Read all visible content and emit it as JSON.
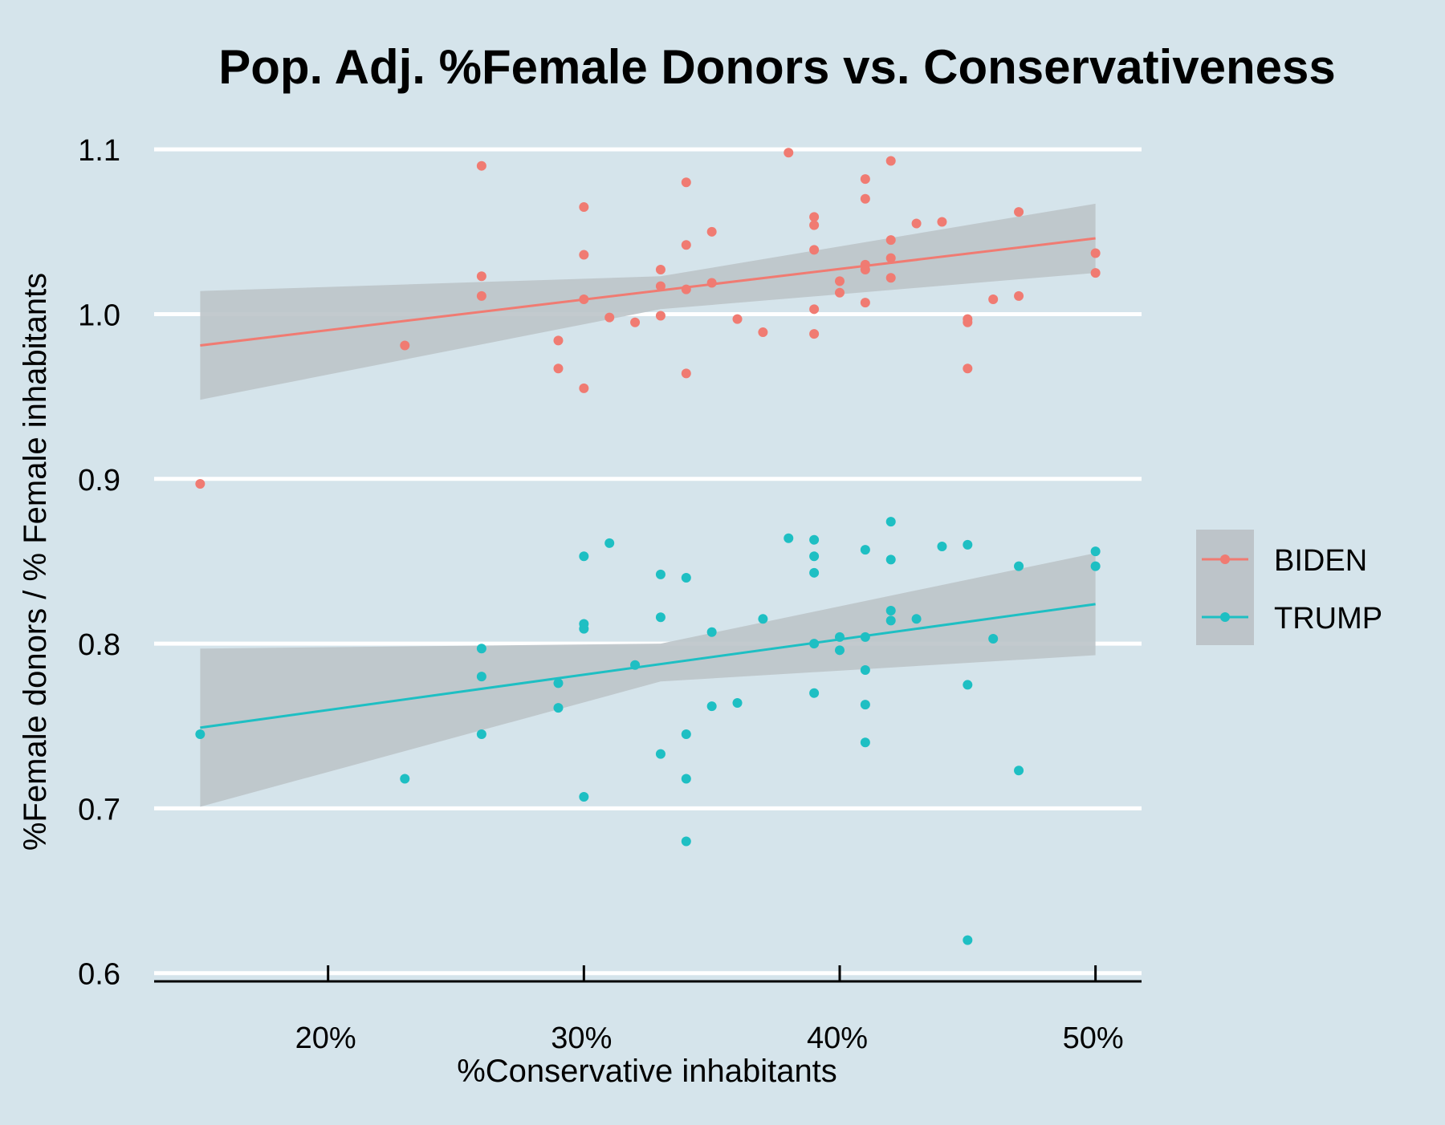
{
  "chart_data": {
    "type": "scatter",
    "title": "Pop. Adj. %Female Donors vs. Conservativeness",
    "xlabel": "%Conservative inhabitants",
    "ylabel": "%Female donors / % Female inhabitants",
    "xlim": [
      13.2,
      51.8
    ],
    "ylim": [
      0.595,
      1.103
    ],
    "x_ticks": [
      20,
      30,
      40,
      50
    ],
    "x_tick_labels": [
      "20%",
      "30%",
      "40%",
      "50%"
    ],
    "y_ticks": [
      0.6,
      0.7,
      0.8,
      0.9,
      1.0,
      1.1
    ],
    "y_tick_labels": [
      "0.6",
      "0.7",
      "0.8",
      "0.9",
      "1.0",
      "1.1"
    ],
    "grid": "horizontal",
    "legend_position": "right",
    "background_color": "#d5e4eb",
    "ribbon_color": "#bdc4c9",
    "series": [
      {
        "name": "BIDEN",
        "color": "#f07b72",
        "points": [
          [
            15,
            0.897
          ],
          [
            23,
            0.981
          ],
          [
            26,
            1.09
          ],
          [
            26,
            1.023
          ],
          [
            26,
            1.011
          ],
          [
            29,
            0.984
          ],
          [
            29,
            0.967
          ],
          [
            30,
            1.065
          ],
          [
            30,
            1.036
          ],
          [
            30,
            1.009
          ],
          [
            30,
            0.955
          ],
          [
            31,
            0.998
          ],
          [
            32,
            0.995
          ],
          [
            33,
            1.027
          ],
          [
            33,
            1.017
          ],
          [
            33,
            0.999
          ],
          [
            34,
            1.08
          ],
          [
            34,
            1.042
          ],
          [
            34,
            1.015
          ],
          [
            34,
            0.964
          ],
          [
            35,
            1.05
          ],
          [
            35,
            1.019
          ],
          [
            36,
            0.997
          ],
          [
            37,
            0.989
          ],
          [
            38,
            1.098
          ],
          [
            39,
            1.059
          ],
          [
            39,
            1.054
          ],
          [
            39,
            1.039
          ],
          [
            39,
            1.003
          ],
          [
            39,
            0.988
          ],
          [
            40,
            1.02
          ],
          [
            40,
            1.013
          ],
          [
            41,
            1.082
          ],
          [
            41,
            1.07
          ],
          [
            41,
            1.03
          ],
          [
            41,
            1.027
          ],
          [
            41,
            1.007
          ],
          [
            42,
            1.093
          ],
          [
            42,
            1.045
          ],
          [
            42,
            1.034
          ],
          [
            42,
            1.022
          ],
          [
            43,
            1.055
          ],
          [
            44,
            1.056
          ],
          [
            45,
            0.997
          ],
          [
            45,
            0.995
          ],
          [
            45,
            0.967
          ],
          [
            46,
            1.009
          ],
          [
            47,
            1.062
          ],
          [
            47,
            1.011
          ],
          [
            50,
            1.037
          ],
          [
            50,
            1.025
          ]
        ],
        "fit": {
          "x": [
            15,
            50
          ],
          "y": [
            0.981,
            1.046
          ]
        },
        "ci": {
          "x": [
            15,
            33,
            50
          ],
          "lower": [
            0.948,
            1.003,
            1.025
          ],
          "upper": [
            1.014,
            1.023,
            1.067
          ]
        }
      },
      {
        "name": "TRUMP",
        "color": "#1ebfc3",
        "points": [
          [
            15,
            0.745
          ],
          [
            23,
            0.718
          ],
          [
            26,
            0.797
          ],
          [
            26,
            0.78
          ],
          [
            26,
            0.745
          ],
          [
            29,
            0.776
          ],
          [
            29,
            0.761
          ],
          [
            30,
            0.853
          ],
          [
            30,
            0.812
          ],
          [
            30,
            0.809
          ],
          [
            30,
            0.707
          ],
          [
            31,
            0.861
          ],
          [
            32,
            0.787
          ],
          [
            33,
            0.842
          ],
          [
            33,
            0.816
          ],
          [
            33,
            0.733
          ],
          [
            34,
            0.84
          ],
          [
            34,
            0.745
          ],
          [
            34,
            0.718
          ],
          [
            34,
            0.68
          ],
          [
            35,
            0.807
          ],
          [
            35,
            0.762
          ],
          [
            36,
            0.764
          ],
          [
            37,
            0.815
          ],
          [
            38,
            0.864
          ],
          [
            39,
            0.863
          ],
          [
            39,
            0.853
          ],
          [
            39,
            0.843
          ],
          [
            39,
            0.8
          ],
          [
            39,
            0.77
          ],
          [
            40,
            0.804
          ],
          [
            40,
            0.796
          ],
          [
            41,
            0.857
          ],
          [
            41,
            0.804
          ],
          [
            41,
            0.784
          ],
          [
            41,
            0.763
          ],
          [
            41,
            0.74
          ],
          [
            42,
            0.874
          ],
          [
            42,
            0.851
          ],
          [
            42,
            0.82
          ],
          [
            42,
            0.814
          ],
          [
            43,
            0.815
          ],
          [
            44,
            0.859
          ],
          [
            45,
            0.86
          ],
          [
            45,
            0.775
          ],
          [
            45,
            0.62
          ],
          [
            46,
            0.803
          ],
          [
            47,
            0.847
          ],
          [
            47,
            0.723
          ],
          [
            50,
            0.856
          ],
          [
            50,
            0.847
          ]
        ],
        "fit": {
          "x": [
            15,
            50
          ],
          "y": [
            0.749,
            0.824
          ]
        },
        "ci": {
          "x": [
            15,
            33,
            50
          ],
          "lower": [
            0.701,
            0.777,
            0.793
          ],
          "upper": [
            0.797,
            0.8,
            0.855
          ]
        }
      }
    ]
  }
}
